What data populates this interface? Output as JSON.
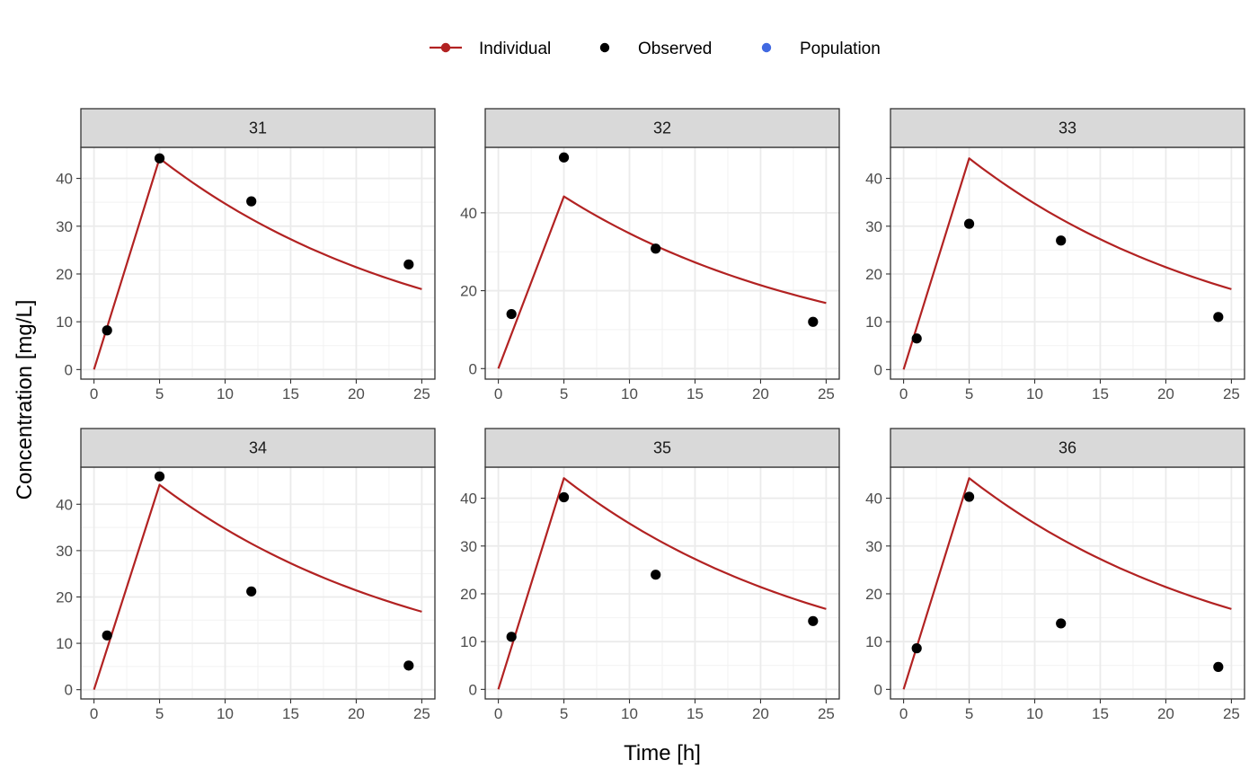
{
  "chart_data": {
    "type": "line",
    "xlabel": "Time [h]",
    "ylabel": "Concentration [mg/L]",
    "xlim": [
      -1,
      26
    ],
    "x_ticks": [
      0,
      5,
      10,
      15,
      20,
      25
    ],
    "grid": true,
    "legend_position": "top",
    "legend": [
      {
        "name": "Individual",
        "style": "line-point",
        "color": "#b22222"
      },
      {
        "name": "Observed",
        "style": "point",
        "color": "#000000"
      },
      {
        "name": "Population",
        "style": "point",
        "color": "#4169e1"
      }
    ],
    "individual_model": {
      "peak_time": 5,
      "peak_value": 44.2,
      "elimination_rate": 0.0483,
      "time_end": 25
    },
    "panels": [
      {
        "id": "31",
        "ylim": [
          -2,
          46.5
        ],
        "y_ticks": [
          0,
          10,
          20,
          30,
          40
        ],
        "observed": [
          {
            "x": 1,
            "y": 8.2
          },
          {
            "x": 5,
            "y": 44.2
          },
          {
            "x": 12,
            "y": 35.2
          },
          {
            "x": 24,
            "y": 22.0
          }
        ]
      },
      {
        "id": "32",
        "ylim": [
          -2.7,
          56.8
        ],
        "y_ticks": [
          0,
          20,
          40
        ],
        "observed": [
          {
            "x": 1,
            "y": 14.0
          },
          {
            "x": 5,
            "y": 54.2
          },
          {
            "x": 12,
            "y": 30.8
          },
          {
            "x": 24,
            "y": 12.0
          }
        ]
      },
      {
        "id": "33",
        "ylim": [
          -2,
          46.5
        ],
        "y_ticks": [
          0,
          10,
          20,
          30,
          40
        ],
        "observed": [
          {
            "x": 1,
            "y": 6.5
          },
          {
            "x": 5,
            "y": 30.5
          },
          {
            "x": 12,
            "y": 27.0
          },
          {
            "x": 24,
            "y": 11.0
          }
        ]
      },
      {
        "id": "34",
        "ylim": [
          -2,
          48.0
        ],
        "y_ticks": [
          0,
          10,
          20,
          30,
          40
        ],
        "observed": [
          {
            "x": 1,
            "y": 11.7
          },
          {
            "x": 5,
            "y": 46.0
          },
          {
            "x": 12,
            "y": 21.2
          },
          {
            "x": 24,
            "y": 5.2
          }
        ]
      },
      {
        "id": "35",
        "ylim": [
          -2,
          46.5
        ],
        "y_ticks": [
          0,
          10,
          20,
          30,
          40
        ],
        "observed": [
          {
            "x": 1,
            "y": 11.0
          },
          {
            "x": 5,
            "y": 40.2
          },
          {
            "x": 12,
            "y": 24.0
          },
          {
            "x": 24,
            "y": 14.3
          }
        ]
      },
      {
        "id": "36",
        "ylim": [
          -2,
          46.5
        ],
        "y_ticks": [
          0,
          10,
          20,
          30,
          40
        ],
        "observed": [
          {
            "x": 1,
            "y": 8.6
          },
          {
            "x": 5,
            "y": 40.3
          },
          {
            "x": 12,
            "y": 13.8
          },
          {
            "x": 24,
            "y": 4.7
          }
        ]
      }
    ]
  }
}
